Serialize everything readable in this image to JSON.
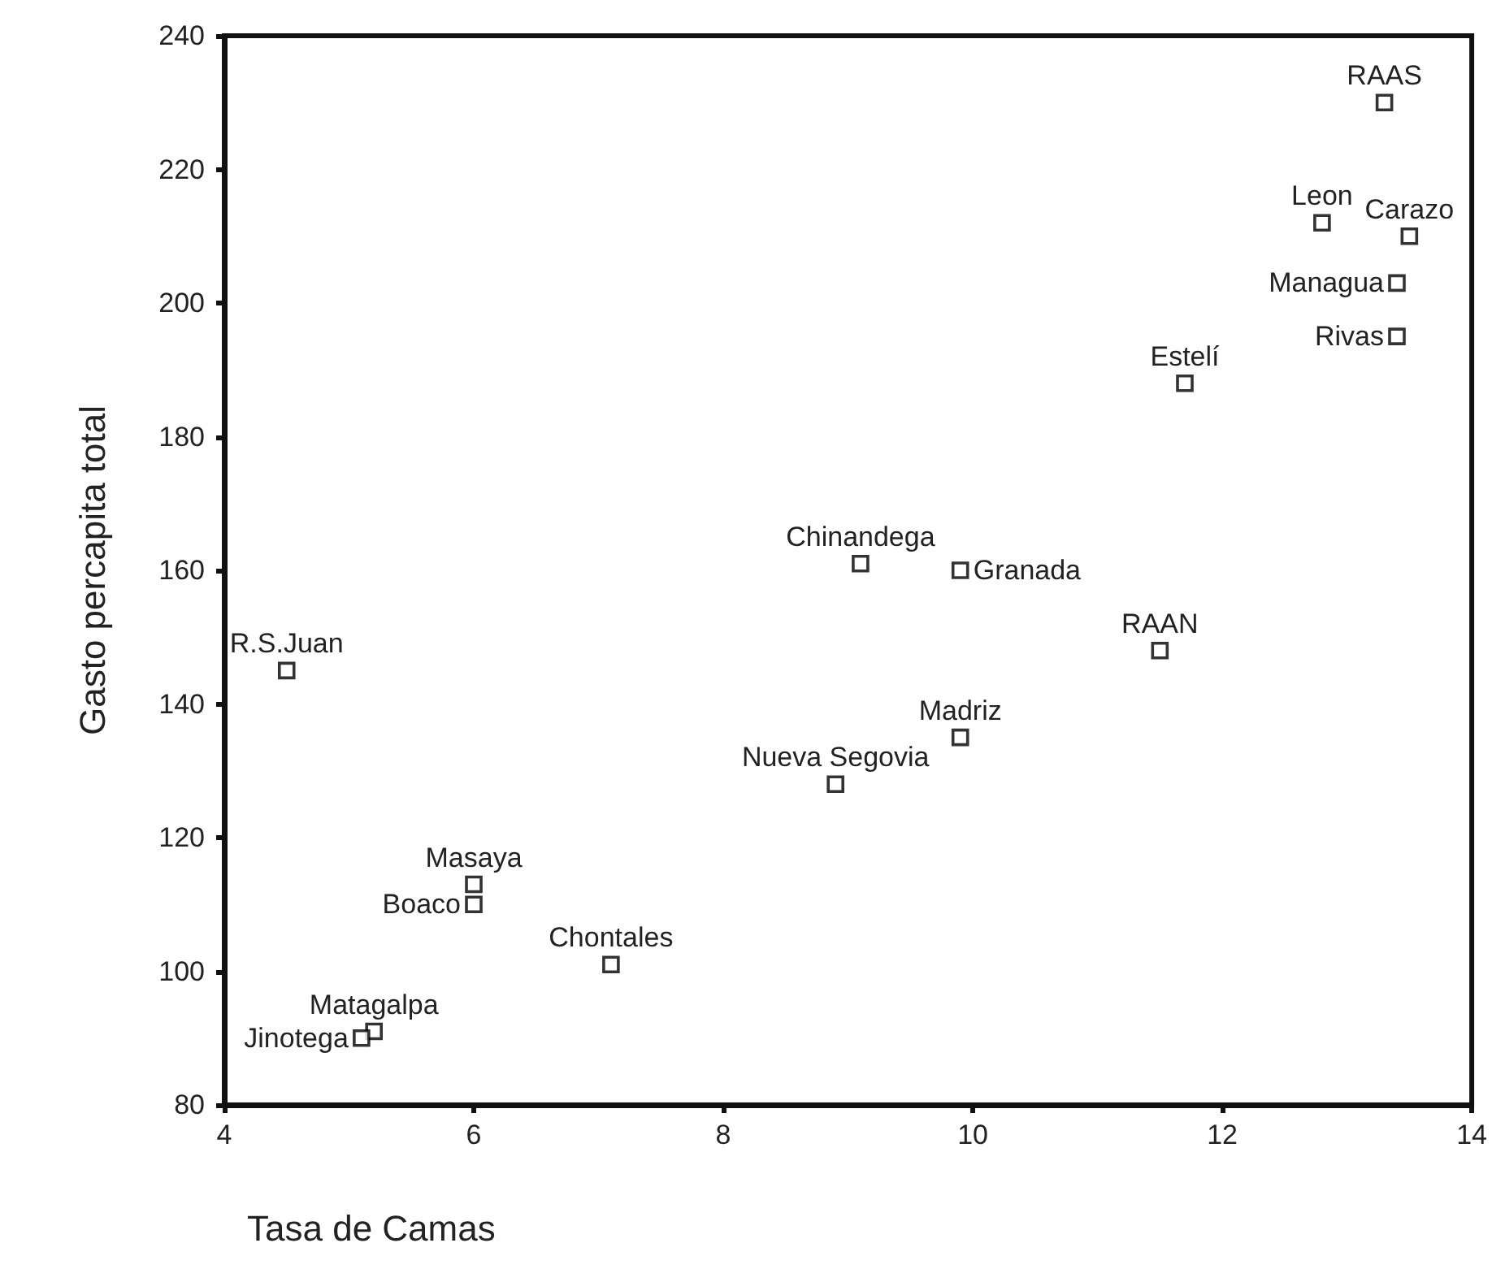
{
  "chart_data": {
    "type": "scatter",
    "xlabel": "Tasa de Camas",
    "ylabel": "Gasto percapita total",
    "x": [
      13.3,
      12.8,
      13.5,
      13.4,
      13.4,
      11.7,
      9.1,
      9.9,
      4.5,
      11.5,
      9.9,
      8.9,
      6.0,
      6.0,
      7.1,
      5.2,
      5.1
    ],
    "values": [
      230,
      212,
      210,
      203,
      195,
      188,
      161,
      160,
      145,
      148,
      135,
      128,
      113,
      110,
      101,
      91,
      90
    ],
    "color": "#000000",
    "marker": "square",
    "grid": false,
    "xlim": [
      4,
      14
    ],
    "xticks": [
      4,
      6,
      8,
      10,
      12,
      14
    ],
    "ylim": [
      80,
      240
    ],
    "yticks": [
      80,
      100,
      120,
      140,
      160,
      180,
      200,
      220,
      240
    ],
    "annotations": [
      {
        "text": "RAAS",
        "x": 13.3,
        "y": 230
      },
      {
        "text": "Leon",
        "x": 12.8,
        "y": 212
      },
      {
        "text": "Carazo",
        "x": 13.5,
        "y": 210
      },
      {
        "text": "Managua",
        "x": 13.4,
        "y": 203
      },
      {
        "text": "Rivas",
        "x": 13.4,
        "y": 195
      },
      {
        "text": "Estelí",
        "x": 11.7,
        "y": 188
      },
      {
        "text": "Chinandega",
        "x": 9.1,
        "y": 161
      },
      {
        "text": "Granada",
        "x": 9.9,
        "y": 160
      },
      {
        "text": "R.S.Juan",
        "x": 4.5,
        "y": 145
      },
      {
        "text": "RAAN",
        "x": 11.5,
        "y": 148
      },
      {
        "text": "Madriz",
        "x": 9.9,
        "y": 135
      },
      {
        "text": "Nueva Segovia",
        "x": 8.9,
        "y": 128
      },
      {
        "text": "Masaya",
        "x": 6.0,
        "y": 113
      },
      {
        "text": "Boaco",
        "x": 6.0,
        "y": 110
      },
      {
        "text": "Chontales",
        "x": 7.1,
        "y": 101
      },
      {
        "text": "Matagalpa",
        "x": 5.2,
        "y": 91
      },
      {
        "text": "Jinotega",
        "x": 5.1,
        "y": 90
      }
    ]
  }
}
